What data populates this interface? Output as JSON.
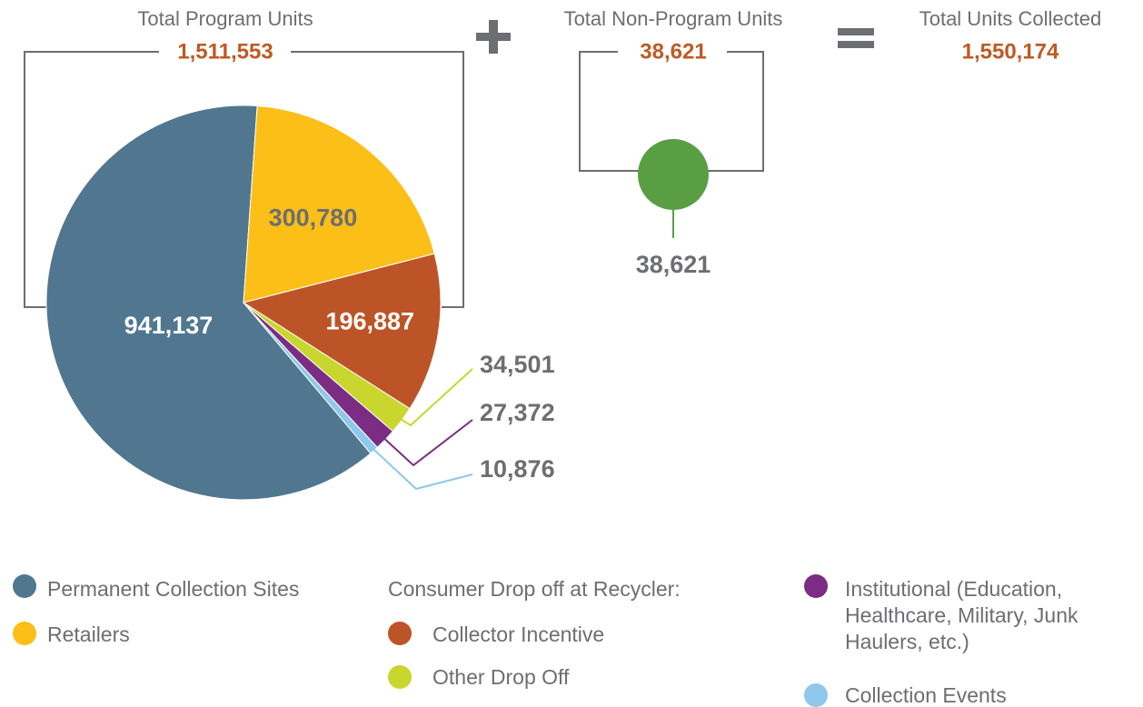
{
  "chart_data": {
    "type": "pie",
    "categories": [
      "Permanent Collection Sites",
      "Retailers",
      "Collector Incentive",
      "Other Drop Off",
      "Institutional (Education, Healthcare, Military, Junk Haulers, etc.)",
      "Collection Events"
    ],
    "values": [
      941137,
      300780,
      196887,
      34501,
      27372,
      10876
    ],
    "value_labels": [
      "941,137",
      "300,780",
      "196,887",
      "34,501",
      "27,372",
      "10,876"
    ],
    "colors": [
      "#50778f",
      "#fbbf17",
      "#bd5427",
      "#c8d62e",
      "#7b2d83",
      "#8ec8ea"
    ],
    "legend_group_title": "Consumer Drop off at Recycler:",
    "totals": [
      {
        "label": "Total Program Units",
        "value": 1511553,
        "value_label": "1,511,553"
      },
      {
        "label": "Total Non-Program Units",
        "value": 38621,
        "value_label": "38,621",
        "color": "#5a9e44"
      },
      {
        "label": "Total Units Collected",
        "value": 1550174,
        "value_label": "1,550,174"
      }
    ]
  }
}
